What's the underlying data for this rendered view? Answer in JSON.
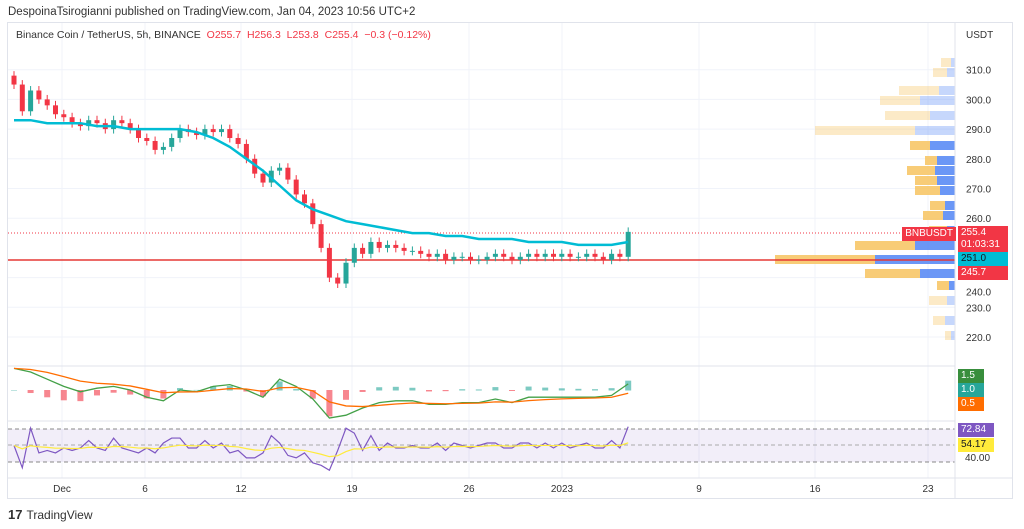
{
  "publish_line": "DespoinaTsirogianni published on TradingView.com, Jan 04, 2023 10:56 UTC+2",
  "legend": {
    "symbol": "Binance Coin / TetherUS, 5h, BINANCE",
    "open": "O255.7",
    "high": "H256.3",
    "low": "L253.8",
    "close": "C255.4",
    "change": "−0.3 (−0.12%)"
  },
  "price_axis": {
    "currency": "USDT",
    "ticks": [
      "310.0",
      "300.0",
      "290.0",
      "280.0",
      "270.0",
      "260.0",
      "240.0",
      "230.0",
      "220.0"
    ]
  },
  "tags": {
    "symbol": "BNBUSDT",
    "last_price": "255.4",
    "countdown": "01:03:31",
    "ema": "251.0",
    "level": "245.7",
    "macd_1": "1.5",
    "macd_2": "1.0",
    "macd_3": "0.5",
    "rsi": "72.84",
    "rsi_ma": "54.17",
    "rsi_level": "40.00"
  },
  "time_axis": [
    "Dec",
    "6",
    "12",
    "19",
    "26",
    "2023",
    "9",
    "16",
    "23"
  ],
  "brand": "TradingView",
  "colors": {
    "up": "#26a69a",
    "down": "#f23645",
    "ema": "#00bcd4",
    "rsi": "#7e57c2",
    "rsi_ma": "#ffeb3b",
    "macd": "#43a047",
    "signal": "#ff6d00"
  },
  "chart_data": {
    "type": "candlestick",
    "title": "Binance Coin / TetherUS, 5h, BINANCE",
    "ylabel": "USDT",
    "ylim": [
      215,
      318
    ],
    "xlim": [
      "2022-11-28",
      "2023-01-25"
    ],
    "closes_half_day_from_2022-11-28": [
      305,
      296,
      303,
      300,
      298,
      295,
      294,
      292,
      291,
      293,
      292,
      290,
      293,
      292,
      290,
      287,
      286,
      283,
      284,
      287,
      290,
      289,
      288,
      290,
      289,
      290,
      287,
      285,
      280,
      275,
      272,
      276,
      277,
      273,
      268,
      265,
      258,
      250,
      240,
      238,
      245,
      250,
      248,
      252,
      250,
      251,
      250,
      249,
      249,
      248,
      247,
      248,
      246,
      247,
      247,
      246,
      246,
      247,
      248,
      247,
      246,
      247,
      248,
      247,
      248,
      247,
      248,
      247,
      247,
      248,
      247,
      246,
      248,
      247,
      255.4
    ],
    "ema_daily_from_2022-11-28": [
      293,
      293,
      292,
      292,
      292,
      291,
      291,
      290,
      290,
      290,
      290,
      289,
      287,
      284,
      280,
      276,
      271,
      266,
      263,
      261,
      259,
      258,
      257,
      256,
      255,
      255,
      254,
      254,
      253,
      253,
      253,
      252,
      252,
      252,
      251,
      251,
      251,
      252
    ],
    "last_price": 255.4,
    "ema_last": 251.0,
    "level": 245.7,
    "macd": {
      "values": [
        1.5,
        1.0,
        0.5
      ]
    },
    "rsi": {
      "value": 72.84,
      "ma": 54.17,
      "bands": [
        30,
        70
      ]
    }
  }
}
